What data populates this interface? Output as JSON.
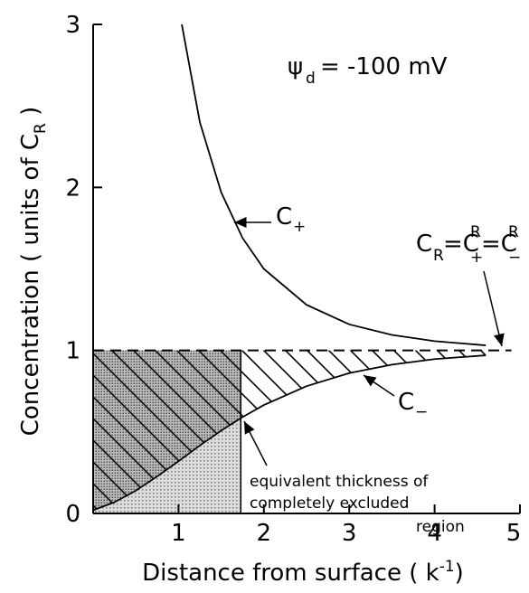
{
  "chart_data": {
    "type": "line",
    "xlim": [
      0,
      5
    ],
    "ylim": [
      0,
      3
    ],
    "xticks": [
      1,
      2,
      3,
      4,
      5
    ],
    "yticks": [
      0,
      1,
      2,
      3
    ],
    "series": [
      {
        "color": "#000",
        "x": [
          1,
          1.25,
          1.5,
          1.75,
          2,
          2.5,
          3,
          3.5,
          4,
          4.6
        ],
        "values": [
          3.11,
          2.4,
          1.97,
          1.69,
          1.5,
          1.28,
          1.16,
          1.095,
          1.057,
          1.031
        ]
      },
      {
        "color": "#000",
        "x": [
          0,
          0.25,
          0.5,
          0.75,
          1,
          1.25,
          1.5,
          1.73,
          2,
          2.5,
          3,
          3.5,
          4,
          4.6
        ],
        "values": [
          0.02,
          0.069,
          0.14,
          0.227,
          0.32,
          0.417,
          0.508,
          0.585,
          0.665,
          0.781,
          0.861,
          0.913,
          0.947,
          0.97
        ]
      }
    ],
    "reference_level": 1,
    "excluded_thickness": 1.73,
    "y_label": {
      "text": "Concentration ( units of  C",
      "sub": "R",
      "end": " )"
    },
    "x_label": {
      "text": "Distance  from  surface ( ",
      "symbol": "k",
      "sup": "-1",
      "end": ")"
    },
    "annotations": {
      "psi": {
        "symbol": "ψ",
        "sub": "d",
        "text": "= -100 mV"
      },
      "c_plus": {
        "symbol": "C",
        "sub": "+"
      },
      "c_minus": {
        "symbol": "C",
        "sub": "−"
      },
      "cr": [
        "C",
        "R",
        "=C",
        "R",
        "+",
        "=C",
        "R",
        "−"
      ],
      "excluded": [
        "equivalent  thickness of",
        "completely excluded",
        "region"
      ]
    }
  }
}
